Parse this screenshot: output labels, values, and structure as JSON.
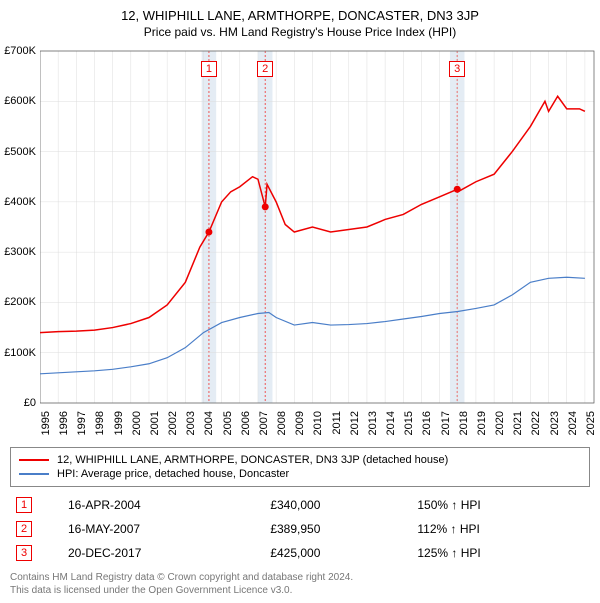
{
  "title": "12, WHIPHILL LANE, ARMTHORPE, DONCASTER, DN3 3JP",
  "subtitle": "Price paid vs. HM Land Registry's House Price Index (HPI)",
  "chart": {
    "type": "line",
    "background_color": "#ffffff",
    "grid_color": "#dddddd",
    "axis_color": "#555555",
    "text_color": "#222222",
    "label_fontsize": 11,
    "xlim": [
      1995,
      2025.5
    ],
    "ylim": [
      0,
      700000
    ],
    "ytick_step": 100000,
    "ytick_labels": [
      "£0",
      "£100K",
      "£200K",
      "£300K",
      "£400K",
      "£500K",
      "£600K",
      "£700K"
    ],
    "xtick_years": [
      1995,
      1996,
      1997,
      1998,
      1999,
      2000,
      2001,
      2002,
      2003,
      2004,
      2005,
      2006,
      2007,
      2008,
      2009,
      2010,
      2011,
      2012,
      2013,
      2014,
      2015,
      2016,
      2017,
      2018,
      2019,
      2020,
      2021,
      2022,
      2023,
      2024,
      2025
    ],
    "shade_band_color": "#d8e4f0",
    "shade_center_color": "#ee5555",
    "transaction_bands": [
      {
        "label": "1",
        "year": 2004.3
      },
      {
        "label": "2",
        "year": 2007.4
      },
      {
        "label": "3",
        "year": 2017.97
      }
    ],
    "transaction_points": [
      {
        "year": 2004.3,
        "value": 340000
      },
      {
        "year": 2007.4,
        "value": 389950
      },
      {
        "year": 2017.97,
        "value": 425000
      }
    ],
    "point_color": "#ee0000",
    "point_radius": 3.5,
    "series": [
      {
        "id": "price_paid",
        "color": "#ee0000",
        "line_width": 1.5,
        "label": "12, WHIPHILL LANE, ARMTHORPE, DONCASTER, DN3 3JP (detached house)",
        "data": [
          [
            1995,
            140000
          ],
          [
            1996,
            142000
          ],
          [
            1997,
            143000
          ],
          [
            1998,
            145000
          ],
          [
            1999,
            150000
          ],
          [
            2000,
            158000
          ],
          [
            2001,
            170000
          ],
          [
            2002,
            195000
          ],
          [
            2003,
            240000
          ],
          [
            2003.8,
            310000
          ],
          [
            2004.3,
            340000
          ],
          [
            2005,
            400000
          ],
          [
            2005.5,
            420000
          ],
          [
            2006,
            430000
          ],
          [
            2006.7,
            450000
          ],
          [
            2007,
            445000
          ],
          [
            2007.4,
            389950
          ],
          [
            2007.5,
            435000
          ],
          [
            2008,
            400000
          ],
          [
            2008.5,
            355000
          ],
          [
            2009,
            340000
          ],
          [
            2010,
            350000
          ],
          [
            2011,
            340000
          ],
          [
            2012,
            345000
          ],
          [
            2013,
            350000
          ],
          [
            2014,
            365000
          ],
          [
            2015,
            375000
          ],
          [
            2016,
            395000
          ],
          [
            2017,
            410000
          ],
          [
            2017.97,
            425000
          ],
          [
            2018,
            420000
          ],
          [
            2019,
            440000
          ],
          [
            2020,
            455000
          ],
          [
            2021,
            500000
          ],
          [
            2022,
            550000
          ],
          [
            2022.8,
            600000
          ],
          [
            2023,
            580000
          ],
          [
            2023.5,
            610000
          ],
          [
            2024,
            585000
          ],
          [
            2024.7,
            585000
          ],
          [
            2025,
            580000
          ]
        ]
      },
      {
        "id": "hpi",
        "color": "#4a7ec8",
        "line_width": 1.2,
        "label": "HPI: Average price, detached house, Doncaster",
        "data": [
          [
            1995,
            58000
          ],
          [
            1996,
            60000
          ],
          [
            1997,
            62000
          ],
          [
            1998,
            64000
          ],
          [
            1999,
            67000
          ],
          [
            2000,
            72000
          ],
          [
            2001,
            78000
          ],
          [
            2002,
            90000
          ],
          [
            2003,
            110000
          ],
          [
            2004,
            140000
          ],
          [
            2005,
            160000
          ],
          [
            2006,
            170000
          ],
          [
            2007,
            178000
          ],
          [
            2007.6,
            180000
          ],
          [
            2008,
            170000
          ],
          [
            2009,
            155000
          ],
          [
            2010,
            160000
          ],
          [
            2011,
            155000
          ],
          [
            2012,
            156000
          ],
          [
            2013,
            158000
          ],
          [
            2014,
            162000
          ],
          [
            2015,
            167000
          ],
          [
            2016,
            172000
          ],
          [
            2017,
            178000
          ],
          [
            2018,
            182000
          ],
          [
            2019,
            188000
          ],
          [
            2020,
            195000
          ],
          [
            2021,
            215000
          ],
          [
            2022,
            240000
          ],
          [
            2023,
            248000
          ],
          [
            2024,
            250000
          ],
          [
            2025,
            248000
          ]
        ]
      }
    ]
  },
  "legend": {
    "series1_label": "12, WHIPHILL LANE, ARMTHORPE, DONCASTER, DN3 3JP (detached house)",
    "series2_label": "HPI: Average price, detached house, Doncaster"
  },
  "transactions": [
    {
      "num": "1",
      "date": "16-APR-2004",
      "price": "£340,000",
      "hpi": "150% ↑ HPI"
    },
    {
      "num": "2",
      "date": "16-MAY-2007",
      "price": "£389,950",
      "hpi": "112% ↑ HPI"
    },
    {
      "num": "3",
      "date": "20-DEC-2017",
      "price": "£425,000",
      "hpi": "125% ↑ HPI"
    }
  ],
  "footer": {
    "line1": "Contains HM Land Registry data © Crown copyright and database right 2024.",
    "line2": "This data is licensed under the Open Government Licence v3.0."
  }
}
